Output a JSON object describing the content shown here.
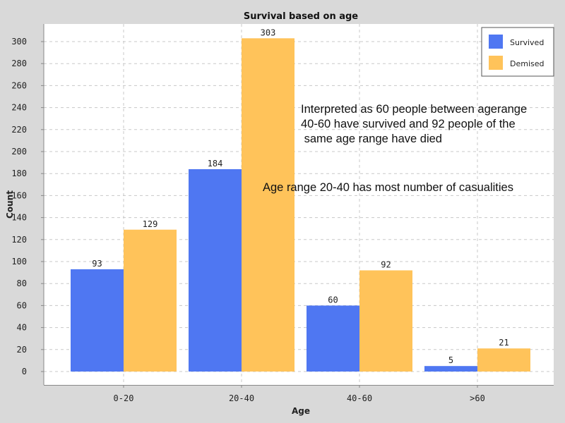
{
  "chart_data": {
    "type": "bar",
    "title": "Survival based on age",
    "xlabel": "Age",
    "ylabel": "Count",
    "categories": [
      "0-20",
      "20-40",
      "40-60",
      ">60"
    ],
    "series": [
      {
        "name": "Survived",
        "values": [
          93,
          184,
          60,
          5
        ],
        "color": "#4f77f2"
      },
      {
        "name": "Demised",
        "values": [
          129,
          303,
          92,
          21
        ],
        "color": "#ffc35a"
      }
    ],
    "ylim": [
      0,
      310
    ],
    "yticks": [
      0,
      20,
      40,
      60,
      80,
      100,
      120,
      140,
      160,
      180,
      200,
      220,
      240,
      260,
      280,
      300
    ],
    "grid": true,
    "legend_position": "top-right"
  },
  "annotations": {
    "interpretation_lines": [
      "Interpreted as 60 people between agerange",
      "40-60 have survived and 92 people of the",
      " same age range have died"
    ],
    "most_casualties": "Age range 20-40 has most number of casualities"
  }
}
